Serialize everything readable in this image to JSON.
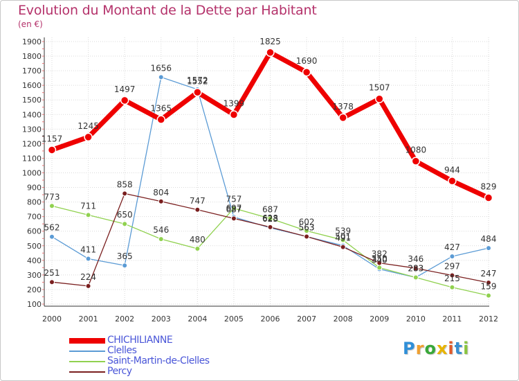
{
  "title": "Evolution du Montant de la Dette par Habitant",
  "subtitle": "(en €)",
  "logo_text": "Proxiti",
  "chart_data": {
    "type": "line",
    "categories": [
      "2000",
      "2001",
      "2002",
      "2003",
      "2004",
      "2005",
      "2006",
      "2007",
      "2008",
      "2009",
      "2010",
      "2011",
      "2012"
    ],
    "yticks": [
      100,
      200,
      300,
      400,
      500,
      600,
      700,
      800,
      900,
      1000,
      1100,
      1200,
      1300,
      1400,
      1500,
      1600,
      1700,
      1800,
      1900
    ],
    "ylim": [
      100,
      1900
    ],
    "grid": true,
    "legend_position": "bottom-left",
    "series": [
      {
        "name": "CHICHILIANNE",
        "color": "#ee0000",
        "width": 7,
        "marker_r": 5.5,
        "values": [
          1157,
          1245,
          1497,
          1365,
          1552,
          1399,
          1825,
          1690,
          1378,
          1507,
          1080,
          944,
          829
        ],
        "labels": [
          "1157",
          "1245",
          "1497",
          "1365",
          "1552",
          "1399",
          "1825",
          "1690",
          "1378",
          "1507",
          "1080",
          "944",
          "829"
        ]
      },
      {
        "name": "Clelles",
        "color": "#5b9bd5",
        "width": 1.3,
        "marker_r": 3.5,
        "values": [
          562,
          411,
          365,
          1656,
          1572,
          697,
          623,
          563,
          501,
          340,
          283,
          427,
          484
        ],
        "labels": [
          "562",
          "411",
          "365",
          "1656",
          "1572",
          "697",
          "623",
          "563",
          "501",
          "340",
          "283",
          "427",
          "484"
        ]
      },
      {
        "name": "Saint-Martin-de-Clelles",
        "color": "#90d14f",
        "width": 1.3,
        "marker_r": 3.5,
        "values": [
          773,
          711,
          650,
          546,
          480,
          757,
          687,
          602,
          539,
          350,
          283,
          215,
          159
        ],
        "labels": [
          "773",
          "711",
          "650",
          "546",
          "480",
          "757",
          "687",
          "602",
          "539",
          "350",
          "283",
          "215",
          "159"
        ]
      },
      {
        "name": "Percy",
        "color": "#7a1f1f",
        "width": 1.3,
        "marker_r": 3.5,
        "values": [
          251,
          224,
          858,
          804,
          747,
          687,
          628,
          563,
          491,
          382,
          346,
          297,
          247
        ],
        "labels": [
          "251",
          "224",
          "858",
          "804",
          "747",
          "687",
          "628",
          "563",
          "491",
          "382",
          "346",
          "297",
          "247"
        ]
      }
    ]
  }
}
